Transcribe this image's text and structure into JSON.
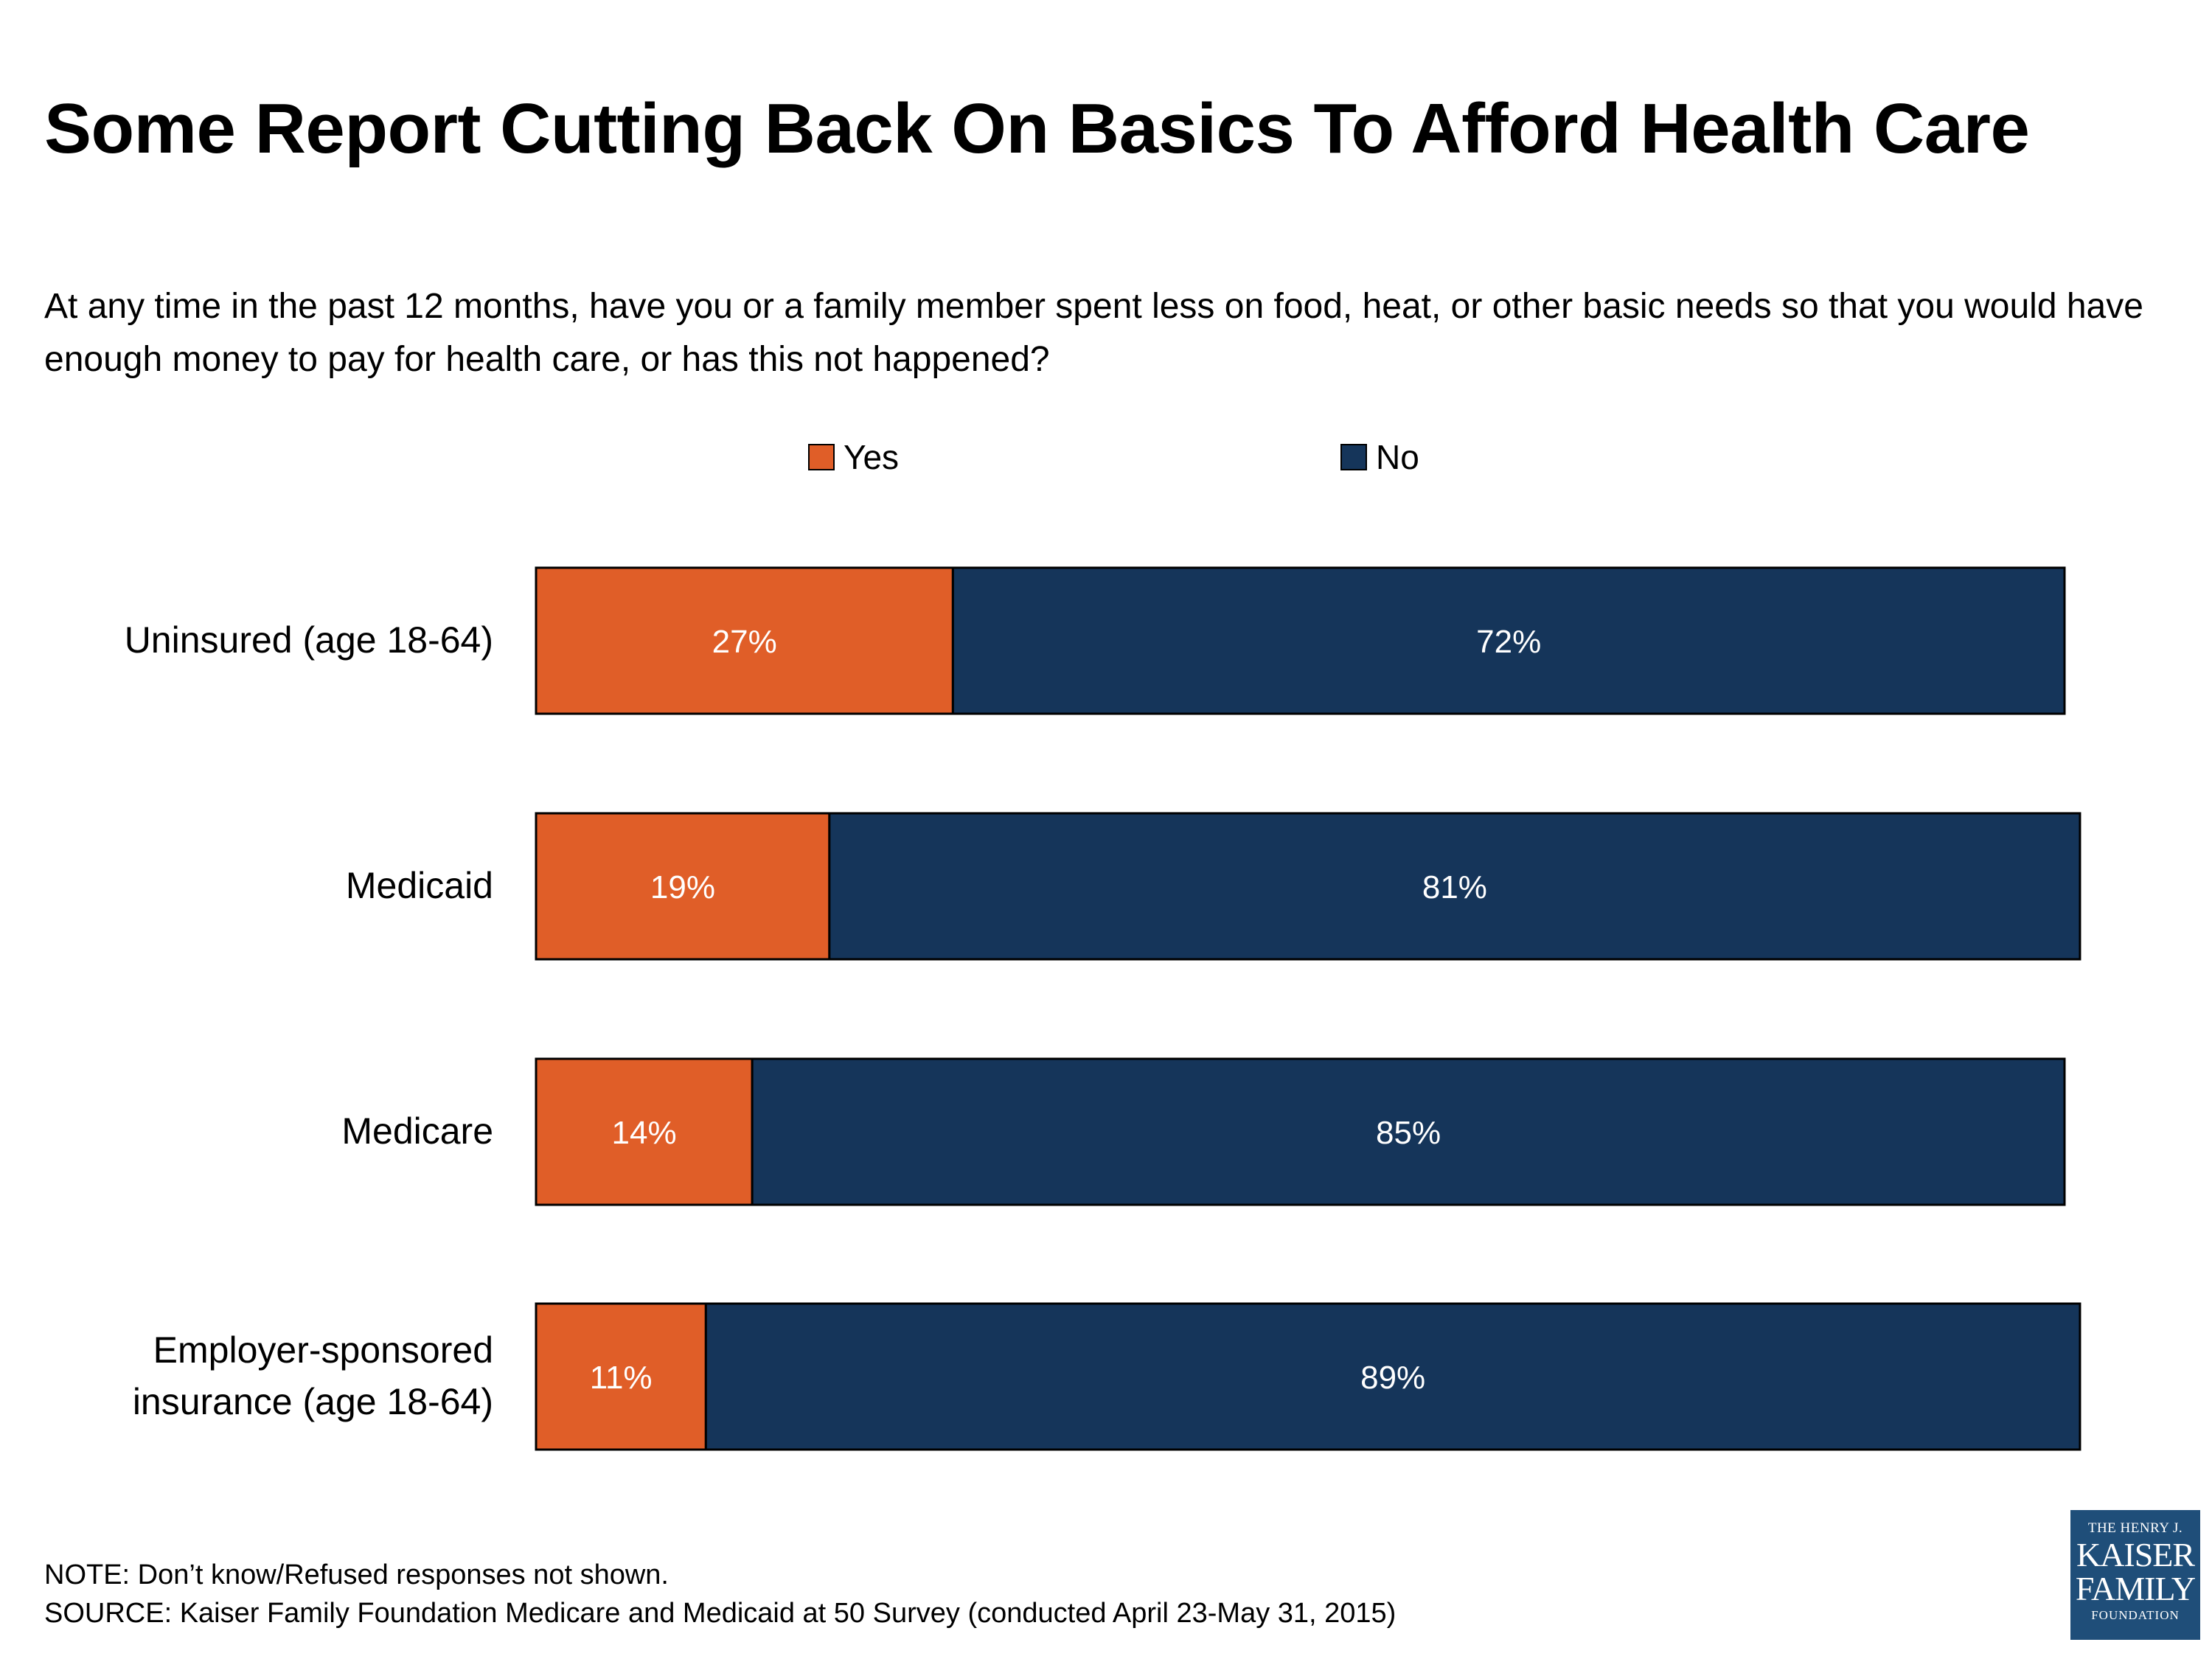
{
  "title": "Some Report Cutting Back On Basics To Afford Health Care",
  "subtitle": "At any time in the past 12 months, have you or a family member spent less on food, heat, or other basic needs so that you would have enough money to pay for health care, or has this not happened?",
  "note": "NOTE: Don’t know/Refused responses not shown.",
  "source": "SOURCE: Kaiser Family Foundation Medicare and Medicaid at 50 Survey (conducted April 23-May 31, 2015)",
  "logo": {
    "line1": "THE HENRY J.",
    "line2": "KAISER",
    "line3": "FAMILY",
    "line4": "FOUNDATION",
    "color": "#1f4e79"
  },
  "chart_data": {
    "type": "bar",
    "orientation": "horizontal",
    "stacked": true,
    "categories": [
      "Uninsured (age 18-64)",
      "Medicaid",
      "Medicare",
      "Employer-sponsored insurance (age 18-64)"
    ],
    "category_lines": [
      [
        "Uninsured (age 18-64)"
      ],
      [
        "Medicaid"
      ],
      [
        "Medicare"
      ],
      [
        "Employer-sponsored",
        "insurance (age 18-64)"
      ]
    ],
    "series": [
      {
        "name": "Yes",
        "color": "#e05e28",
        "values": [
          27,
          19,
          14,
          11
        ],
        "labels": [
          "27%",
          "19%",
          "14%",
          "11%"
        ]
      },
      {
        "name": "No",
        "color": "#15355a",
        "values": [
          72,
          81,
          85,
          89
        ],
        "labels": [
          "72%",
          "81%",
          "85%",
          "89%"
        ]
      }
    ],
    "xlim": [
      0,
      99
    ],
    "grid": false,
    "legend_position": "top"
  }
}
